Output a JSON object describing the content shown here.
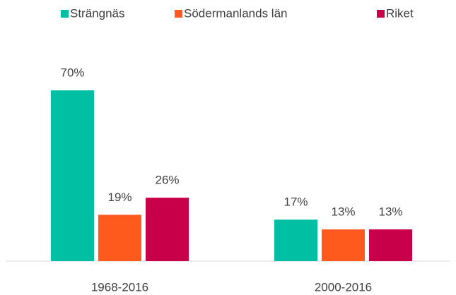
{
  "chart_data": {
    "type": "bar",
    "categories": [
      "1968-2016",
      "2000-2016"
    ],
    "series": [
      {
        "name": "Strängnäs",
        "color": "#00bfa3",
        "values": [
          70,
          17
        ],
        "value_labels": [
          "70%",
          "17%"
        ]
      },
      {
        "name": "Södermanlands län",
        "color": "#ff5a1e",
        "values": [
          19,
          13
        ],
        "value_labels": [
          "19%",
          "13%"
        ]
      },
      {
        "name": "Riket",
        "color": "#c8004a",
        "values": [
          26,
          13
        ],
        "value_labels": [
          "26%",
          "13%"
        ]
      }
    ],
    "legend": "top"
  }
}
